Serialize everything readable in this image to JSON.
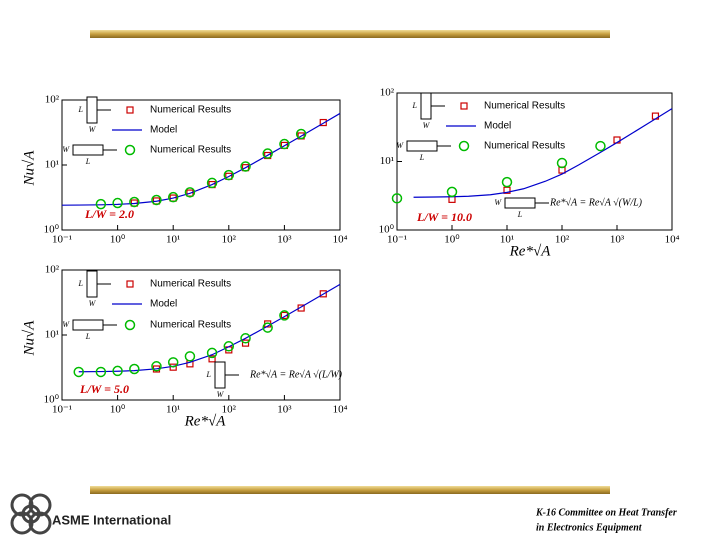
{
  "chart_data": [
    {
      "type": "scatter",
      "ylabel": "Nu√A",
      "annotation": "L/W = 2.0",
      "xlim": [
        0.1,
        10000
      ],
      "ylim": [
        1,
        100
      ],
      "log_x": true,
      "log_y": true,
      "xticks": [
        {
          "value": 0.1,
          "label": "10⁻¹"
        },
        {
          "value": 1,
          "label": "10⁰"
        },
        {
          "value": 10,
          "label": "10¹"
        },
        {
          "value": 100,
          "label": "10²"
        },
        {
          "value": 1000,
          "label": "10³"
        },
        {
          "value": 10000,
          "label": "10⁴"
        }
      ],
      "yticks": [
        {
          "value": 1,
          "label": "10⁰"
        },
        {
          "value": 10,
          "label": "10¹"
        },
        {
          "value": 100,
          "label": "10²"
        }
      ],
      "icons": [
        [
          "L",
          "W"
        ],
        [
          "W",
          "L"
        ]
      ],
      "series": [
        {
          "name": "Numerical Results",
          "marker": "square",
          "color": "#cc0000",
          "x": [
            2,
            5,
            10,
            20,
            50,
            100,
            200,
            500,
            1000,
            2000,
            5000
          ],
          "values": [
            2.6,
            2.8,
            3.1,
            3.7,
            5.0,
            6.7,
            9.1,
            14,
            20,
            28,
            45
          ]
        },
        {
          "name": "Model",
          "marker": "line",
          "color": "#0000cc",
          "x": [
            0.1,
            0.2,
            0.5,
            1,
            2,
            5,
            10,
            20,
            50,
            100,
            200,
            500,
            1000,
            2000,
            5000,
            10000
          ],
          "values": [
            2.41,
            2.42,
            2.44,
            2.48,
            2.56,
            2.77,
            3.1,
            3.67,
            5.0,
            6.65,
            9.09,
            14.1,
            19.8,
            27.8,
            43.9,
            62.1
          ]
        },
        {
          "name": "Numerical Results",
          "marker": "circle",
          "color": "#00bb00",
          "x": [
            0.5,
            1,
            2,
            5,
            10,
            20,
            50,
            100,
            200,
            500,
            1000,
            2000
          ],
          "values": [
            2.5,
            2.6,
            2.7,
            2.9,
            3.2,
            3.8,
            5.3,
            7,
            9.5,
            15,
            21,
            30
          ]
        }
      ]
    },
    {
      "type": "scatter",
      "xlabel": "Re*√A",
      "annotation": "L/W = 10.0",
      "formula": {
        "icon": [
          "W",
          "L"
        ],
        "text": "Re*√A = Re√A √(W/L)"
      },
      "xlim": [
        0.1,
        10000
      ],
      "ylim": [
        1,
        100
      ],
      "log_x": true,
      "log_y": true,
      "xticks": [
        {
          "value": 0.1,
          "label": "10⁻¹"
        },
        {
          "value": 1,
          "label": "10⁰"
        },
        {
          "value": 10,
          "label": "10¹"
        },
        {
          "value": 100,
          "label": "10²"
        },
        {
          "value": 1000,
          "label": "10³"
        },
        {
          "value": 10000,
          "label": "10⁴"
        }
      ],
      "yticks": [
        {
          "value": 1,
          "label": "10⁰"
        },
        {
          "value": 10,
          "label": "10¹"
        },
        {
          "value": 100,
          "label": "10²"
        }
      ],
      "icons": [
        [
          "L",
          "W"
        ],
        [
          "W",
          "L"
        ]
      ],
      "series": [
        {
          "name": "Numerical Results",
          "marker": "square",
          "color": "#cc0000",
          "x": [
            1,
            10,
            100,
            1000,
            5000
          ],
          "values": [
            2.8,
            3.8,
            7.5,
            20.6,
            46
          ]
        },
        {
          "name": "Model",
          "marker": "line",
          "color": "#0000cc",
          "x": [
            0.2,
            0.5,
            1,
            2,
            5,
            10,
            20,
            50,
            100,
            200,
            500,
            1000,
            2000,
            5000,
            10000
          ],
          "values": [
            3.01,
            3.03,
            3.06,
            3.11,
            3.27,
            3.54,
            4.0,
            5.15,
            6.56,
            8.89,
            13.6,
            18.9,
            26.6,
            41.9,
            59.2
          ]
        },
        {
          "name": "Numerical Results",
          "marker": "circle",
          "color": "#00bb00",
          "x": [
            0.1,
            1,
            10,
            100,
            500
          ],
          "values": [
            2.9,
            3.6,
            5.0,
            9.5,
            16.8
          ]
        }
      ]
    },
    {
      "type": "scatter",
      "ylabel": "Nu√A",
      "xlabel": "Re*√A",
      "annotation": "L/W = 5.0",
      "formula": {
        "icon": [
          "L",
          "W"
        ],
        "text": "Re*√A = Re√A √(L/W)"
      },
      "xlim": [
        0.1,
        10000
      ],
      "ylim": [
        1,
        100
      ],
      "log_x": true,
      "log_y": true,
      "xticks": [
        {
          "value": 0.1,
          "label": "10⁻¹"
        },
        {
          "value": 1,
          "label": "10⁰"
        },
        {
          "value": 10,
          "label": "10¹"
        },
        {
          "value": 100,
          "label": "10²"
        },
        {
          "value": 1000,
          "label": "10³"
        },
        {
          "value": 10000,
          "label": "10⁴"
        }
      ],
      "yticks": [
        {
          "value": 1,
          "label": "10⁰"
        },
        {
          "value": 10,
          "label": "10¹"
        },
        {
          "value": 100,
          "label": "10²"
        }
      ],
      "icons": [
        [
          "L",
          "W"
        ],
        [
          "W",
          "L"
        ]
      ],
      "series": [
        {
          "name": "Numerical Results",
          "marker": "square",
          "color": "#cc0000",
          "x": [
            5,
            10,
            20,
            50,
            100,
            200,
            500,
            1000,
            2000,
            5000
          ],
          "values": [
            3.0,
            3.2,
            3.6,
            4.3,
            5.9,
            7.5,
            14.8,
            20,
            26,
            43
          ]
        },
        {
          "name": "Model",
          "marker": "line",
          "color": "#0000cc",
          "x": [
            0.2,
            0.5,
            1,
            2,
            5,
            10,
            20,
            50,
            100,
            200,
            500,
            1000,
            2000,
            5000,
            10000
          ],
          "values": [
            2.72,
            2.74,
            2.77,
            2.83,
            3.02,
            3.3,
            3.8,
            4.97,
            6.59,
            8.89,
            13.7,
            19.2,
            27,
            42.5,
            60.1
          ]
        },
        {
          "name": "Numerical Results",
          "marker": "circle",
          "color": "#00bb00",
          "x": [
            0.2,
            0.5,
            1,
            2,
            5,
            10,
            20,
            50,
            100,
            200,
            500,
            1000
          ],
          "values": [
            2.7,
            2.7,
            2.8,
            3.0,
            3.3,
            3.8,
            4.7,
            5.3,
            6.7,
            8.9,
            13,
            20
          ]
        }
      ]
    }
  ],
  "footer": {
    "organization": "ASME International",
    "committee": "K-16 Committee on Heat Transfer",
    "committee_line2": "in Electronics Equipment"
  }
}
